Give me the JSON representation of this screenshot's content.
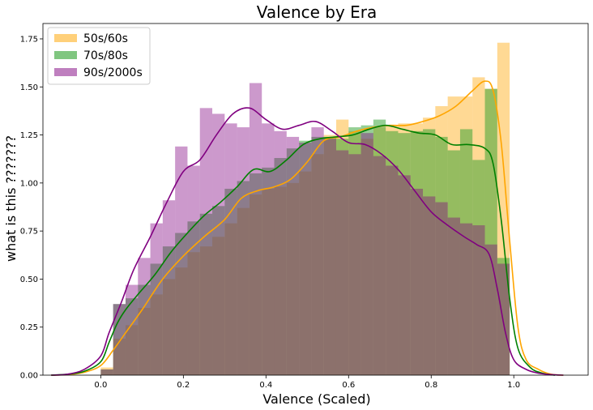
{
  "chart_data": {
    "type": "bar",
    "title": "Valence by Era",
    "xlabel": "Valence (Scaled)",
    "ylabel": "what is this ???????",
    "xlim": [
      -0.14,
      1.18
    ],
    "ylim": [
      0,
      1.83
    ],
    "xticks": [
      "0.0",
      "0.2",
      "0.4",
      "0.6",
      "0.8",
      "1.0"
    ],
    "yticks": [
      "0.00",
      "0.25",
      "0.50",
      "0.75",
      "1.00",
      "1.25",
      "1.50",
      "1.75"
    ],
    "grid": false,
    "legend_position": "top-left",
    "bin_edges": [
      0.0,
      0.03,
      0.06,
      0.09,
      0.12,
      0.15,
      0.18,
      0.21,
      0.24,
      0.27,
      0.3,
      0.33,
      0.36,
      0.39,
      0.42,
      0.45,
      0.48,
      0.51,
      0.54,
      0.57,
      0.6,
      0.63,
      0.66,
      0.69,
      0.72,
      0.75,
      0.78,
      0.81,
      0.84,
      0.87,
      0.9,
      0.93,
      0.96,
      0.99
    ],
    "series": [
      {
        "name": "50s/60s",
        "bar_color": "#ffa500",
        "line_color": "#ffa500",
        "bar_opacity": 0.42,
        "counts": [
          0.04,
          0.19,
          0.26,
          0.35,
          0.42,
          0.5,
          0.56,
          0.64,
          0.67,
          0.72,
          0.79,
          0.87,
          0.94,
          0.97,
          0.98,
          1.0,
          1.06,
          1.15,
          1.25,
          1.33,
          1.27,
          1.23,
          1.29,
          1.3,
          1.31,
          1.31,
          1.34,
          1.4,
          1.45,
          1.45,
          1.55,
          1.49,
          1.73
        ],
        "kde_x": [
          -0.12,
          -0.08,
          -0.04,
          0.0,
          0.03,
          0.06,
          0.1,
          0.15,
          0.2,
          0.25,
          0.3,
          0.34,
          0.38,
          0.42,
          0.46,
          0.5,
          0.54,
          0.58,
          0.62,
          0.66,
          0.7,
          0.74,
          0.78,
          0.82,
          0.86,
          0.9,
          0.93,
          0.95,
          0.97,
          0.99,
          1.01,
          1.03,
          1.06,
          1.09,
          1.12
        ],
        "kde_y": [
          0.0,
          0.003,
          0.015,
          0.05,
          0.13,
          0.22,
          0.34,
          0.5,
          0.62,
          0.72,
          0.81,
          0.92,
          0.96,
          0.98,
          1.02,
          1.11,
          1.22,
          1.24,
          1.27,
          1.29,
          1.3,
          1.3,
          1.32,
          1.35,
          1.4,
          1.48,
          1.53,
          1.48,
          1.2,
          0.7,
          0.25,
          0.08,
          0.03,
          0.005,
          0.0
        ]
      },
      {
        "name": "70s/80s",
        "bar_color": "#2ca02c",
        "line_color": "#008000",
        "bar_opacity": 0.5,
        "counts": [
          0.03,
          0.37,
          0.4,
          0.47,
          0.58,
          0.67,
          0.74,
          0.8,
          0.84,
          0.88,
          0.97,
          1.01,
          1.05,
          1.08,
          1.13,
          1.18,
          1.22,
          1.24,
          1.24,
          1.23,
          1.29,
          1.3,
          1.33,
          1.27,
          1.26,
          1.27,
          1.28,
          1.24,
          1.17,
          1.28,
          1.12,
          1.49,
          0.61
        ],
        "kde_x": [
          -0.12,
          -0.08,
          -0.04,
          0.0,
          0.02,
          0.04,
          0.06,
          0.09,
          0.13,
          0.17,
          0.21,
          0.25,
          0.29,
          0.33,
          0.37,
          0.41,
          0.45,
          0.49,
          0.53,
          0.57,
          0.61,
          0.65,
          0.69,
          0.73,
          0.77,
          0.81,
          0.85,
          0.89,
          0.93,
          0.95,
          0.97,
          0.99,
          1.01,
          1.04,
          1.07,
          1.1
        ],
        "kde_y": [
          0.0,
          0.005,
          0.02,
          0.07,
          0.17,
          0.27,
          0.34,
          0.42,
          0.52,
          0.64,
          0.74,
          0.83,
          0.9,
          0.98,
          1.07,
          1.06,
          1.12,
          1.2,
          1.23,
          1.24,
          1.25,
          1.28,
          1.3,
          1.28,
          1.26,
          1.25,
          1.2,
          1.2,
          1.18,
          1.1,
          0.8,
          0.4,
          0.14,
          0.04,
          0.01,
          0.0
        ]
      },
      {
        "name": "90s/2000s",
        "bar_color": "#800080",
        "line_color": "#800080",
        "bar_opacity": 0.4,
        "counts": [
          0.03,
          0.37,
          0.47,
          0.61,
          0.79,
          0.91,
          1.19,
          1.09,
          1.39,
          1.36,
          1.31,
          1.29,
          1.52,
          1.31,
          1.27,
          1.24,
          1.21,
          1.29,
          1.23,
          1.17,
          1.15,
          1.26,
          1.14,
          1.09,
          1.04,
          0.97,
          0.93,
          0.9,
          0.82,
          0.79,
          0.78,
          0.68,
          0.58
        ],
        "kde_x": [
          -0.12,
          -0.08,
          -0.04,
          0.0,
          0.02,
          0.05,
          0.08,
          0.12,
          0.16,
          0.2,
          0.24,
          0.28,
          0.32,
          0.36,
          0.4,
          0.44,
          0.48,
          0.52,
          0.56,
          0.6,
          0.64,
          0.68,
          0.72,
          0.76,
          0.8,
          0.84,
          0.88,
          0.91,
          0.94,
          0.96,
          0.98,
          1.0,
          1.03,
          1.06,
          1.09,
          1.12
        ],
        "kde_y": [
          0.0,
          0.005,
          0.03,
          0.1,
          0.22,
          0.38,
          0.55,
          0.72,
          0.9,
          1.06,
          1.12,
          1.25,
          1.36,
          1.39,
          1.33,
          1.28,
          1.3,
          1.32,
          1.27,
          1.21,
          1.2,
          1.15,
          1.07,
          0.96,
          0.85,
          0.78,
          0.72,
          0.68,
          0.63,
          0.45,
          0.22,
          0.08,
          0.03,
          0.01,
          0.003,
          0.0
        ]
      }
    ]
  }
}
